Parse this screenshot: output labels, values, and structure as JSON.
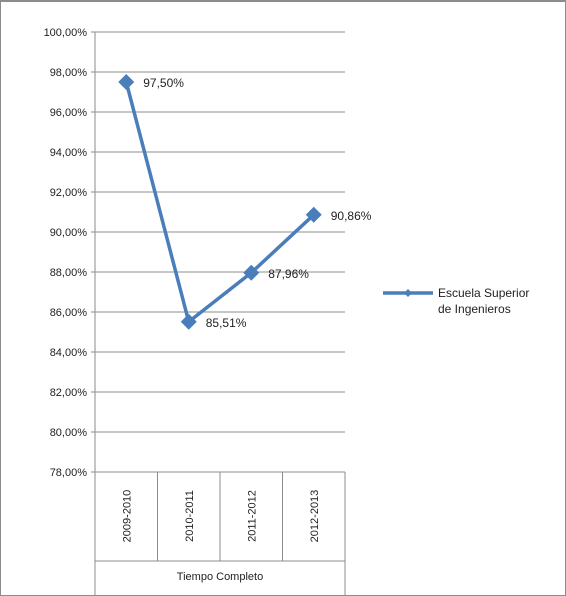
{
  "chart_data": {
    "type": "line",
    "categories": [
      "2009-2010",
      "2010-2011",
      "2011-2012",
      "2012-2013"
    ],
    "group_label": "Tiempo Completo",
    "series": [
      {
        "name": "Escuela Superior de Ingenieros",
        "legend_lines": [
          "Escuela Superior",
          "de Ingenieros"
        ],
        "values": [
          97.5,
          85.51,
          87.96,
          90.86
        ],
        "labels": [
          "97,50%",
          "85,51%",
          "87,96%",
          "90,86%"
        ],
        "color": "#4a7ebb"
      }
    ],
    "ylim": [
      78,
      100
    ],
    "yticks": [
      "100,00%",
      "98,00%",
      "96,00%",
      "94,00%",
      "92,00%",
      "90,00%",
      "88,00%",
      "86,00%",
      "84,00%",
      "82,00%",
      "80,00%",
      "78,00%"
    ],
    "grid": true,
    "legend": "right"
  }
}
